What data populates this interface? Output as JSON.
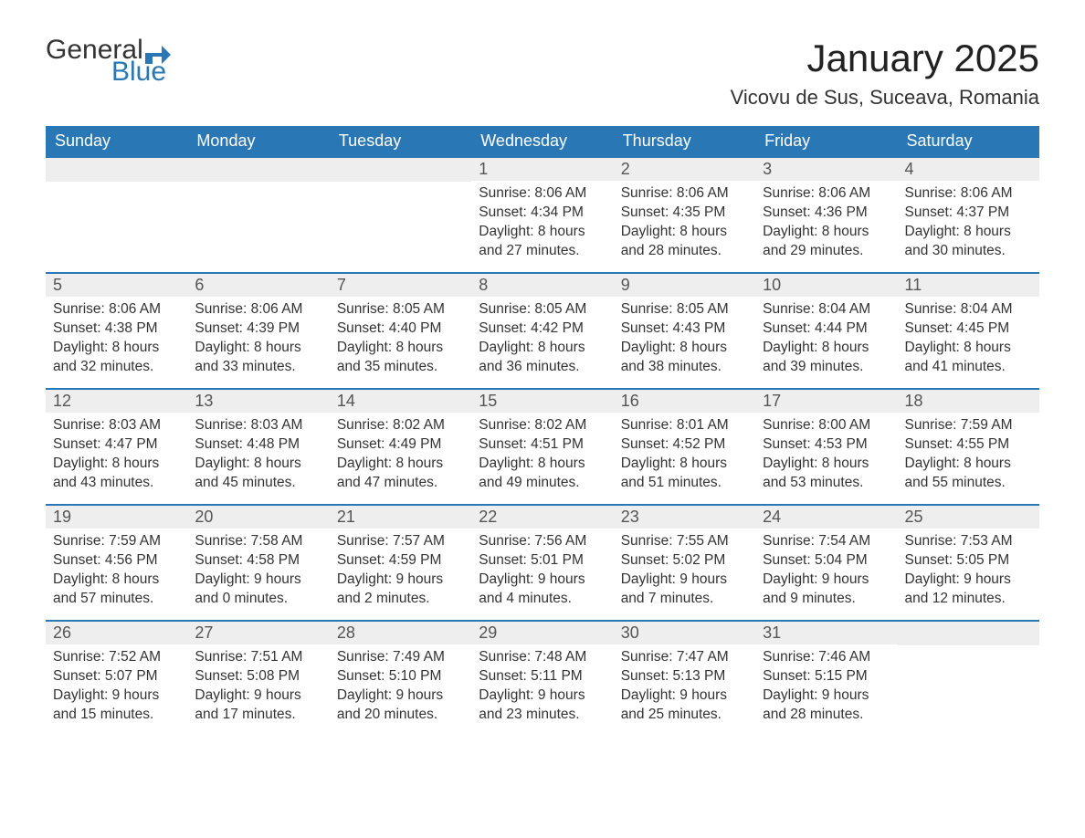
{
  "logo": {
    "text1": "General",
    "text2": "Blue",
    "flag_color": "#2a77b5"
  },
  "title": "January 2025",
  "location": "Vicovu de Sus, Suceava, Romania",
  "colors": {
    "header_bg": "#2a77b5",
    "header_text": "#ffffff",
    "daynum_bg": "#eeeeee",
    "daynum_text": "#555555",
    "body_text": "#333333",
    "border": "#2a77b5",
    "page_bg": "#ffffff"
  },
  "typography": {
    "title_fontsize": 42,
    "location_fontsize": 22,
    "dow_fontsize": 18,
    "daynum_fontsize": 18,
    "body_fontsize": 15.5
  },
  "days_of_week": [
    "Sunday",
    "Monday",
    "Tuesday",
    "Wednesday",
    "Thursday",
    "Friday",
    "Saturday"
  ],
  "labels": {
    "sunrise": "Sunrise:",
    "sunset": "Sunset:",
    "daylight": "Daylight:"
  },
  "weeks": [
    [
      null,
      null,
      null,
      {
        "n": "1",
        "sunrise": "8:06 AM",
        "sunset": "4:34 PM",
        "dayh": "8",
        "daym": "27"
      },
      {
        "n": "2",
        "sunrise": "8:06 AM",
        "sunset": "4:35 PM",
        "dayh": "8",
        "daym": "28"
      },
      {
        "n": "3",
        "sunrise": "8:06 AM",
        "sunset": "4:36 PM",
        "dayh": "8",
        "daym": "29"
      },
      {
        "n": "4",
        "sunrise": "8:06 AM",
        "sunset": "4:37 PM",
        "dayh": "8",
        "daym": "30"
      }
    ],
    [
      {
        "n": "5",
        "sunrise": "8:06 AM",
        "sunset": "4:38 PM",
        "dayh": "8",
        "daym": "32"
      },
      {
        "n": "6",
        "sunrise": "8:06 AM",
        "sunset": "4:39 PM",
        "dayh": "8",
        "daym": "33"
      },
      {
        "n": "7",
        "sunrise": "8:05 AM",
        "sunset": "4:40 PM",
        "dayh": "8",
        "daym": "35"
      },
      {
        "n": "8",
        "sunrise": "8:05 AM",
        "sunset": "4:42 PM",
        "dayh": "8",
        "daym": "36"
      },
      {
        "n": "9",
        "sunrise": "8:05 AM",
        "sunset": "4:43 PM",
        "dayh": "8",
        "daym": "38"
      },
      {
        "n": "10",
        "sunrise": "8:04 AM",
        "sunset": "4:44 PM",
        "dayh": "8",
        "daym": "39"
      },
      {
        "n": "11",
        "sunrise": "8:04 AM",
        "sunset": "4:45 PM",
        "dayh": "8",
        "daym": "41"
      }
    ],
    [
      {
        "n": "12",
        "sunrise": "8:03 AM",
        "sunset": "4:47 PM",
        "dayh": "8",
        "daym": "43"
      },
      {
        "n": "13",
        "sunrise": "8:03 AM",
        "sunset": "4:48 PM",
        "dayh": "8",
        "daym": "45"
      },
      {
        "n": "14",
        "sunrise": "8:02 AM",
        "sunset": "4:49 PM",
        "dayh": "8",
        "daym": "47"
      },
      {
        "n": "15",
        "sunrise": "8:02 AM",
        "sunset": "4:51 PM",
        "dayh": "8",
        "daym": "49"
      },
      {
        "n": "16",
        "sunrise": "8:01 AM",
        "sunset": "4:52 PM",
        "dayh": "8",
        "daym": "51"
      },
      {
        "n": "17",
        "sunrise": "8:00 AM",
        "sunset": "4:53 PM",
        "dayh": "8",
        "daym": "53"
      },
      {
        "n": "18",
        "sunrise": "7:59 AM",
        "sunset": "4:55 PM",
        "dayh": "8",
        "daym": "55"
      }
    ],
    [
      {
        "n": "19",
        "sunrise": "7:59 AM",
        "sunset": "4:56 PM",
        "dayh": "8",
        "daym": "57"
      },
      {
        "n": "20",
        "sunrise": "7:58 AM",
        "sunset": "4:58 PM",
        "dayh": "9",
        "daym": "0"
      },
      {
        "n": "21",
        "sunrise": "7:57 AM",
        "sunset": "4:59 PM",
        "dayh": "9",
        "daym": "2"
      },
      {
        "n": "22",
        "sunrise": "7:56 AM",
        "sunset": "5:01 PM",
        "dayh": "9",
        "daym": "4"
      },
      {
        "n": "23",
        "sunrise": "7:55 AM",
        "sunset": "5:02 PM",
        "dayh": "9",
        "daym": "7"
      },
      {
        "n": "24",
        "sunrise": "7:54 AM",
        "sunset": "5:04 PM",
        "dayh": "9",
        "daym": "9"
      },
      {
        "n": "25",
        "sunrise": "7:53 AM",
        "sunset": "5:05 PM",
        "dayh": "9",
        "daym": "12"
      }
    ],
    [
      {
        "n": "26",
        "sunrise": "7:52 AM",
        "sunset": "5:07 PM",
        "dayh": "9",
        "daym": "15"
      },
      {
        "n": "27",
        "sunrise": "7:51 AM",
        "sunset": "5:08 PM",
        "dayh": "9",
        "daym": "17"
      },
      {
        "n": "28",
        "sunrise": "7:49 AM",
        "sunset": "5:10 PM",
        "dayh": "9",
        "daym": "20"
      },
      {
        "n": "29",
        "sunrise": "7:48 AM",
        "sunset": "5:11 PM",
        "dayh": "9",
        "daym": "23"
      },
      {
        "n": "30",
        "sunrise": "7:47 AM",
        "sunset": "5:13 PM",
        "dayh": "9",
        "daym": "25"
      },
      {
        "n": "31",
        "sunrise": "7:46 AM",
        "sunset": "5:15 PM",
        "dayh": "9",
        "daym": "28"
      },
      null
    ]
  ]
}
